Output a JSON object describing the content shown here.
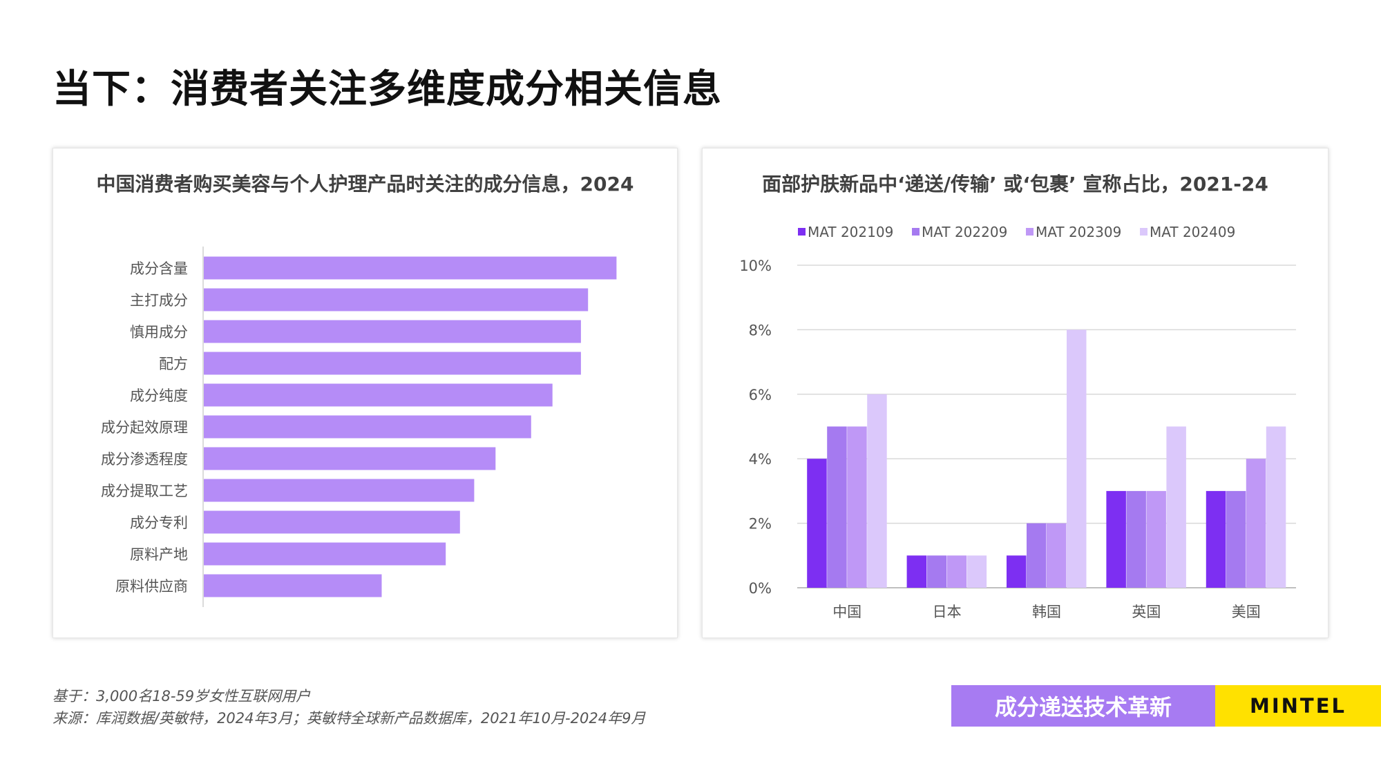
{
  "page": {
    "title": "当下：消费者关注多维度成分相关信息"
  },
  "chart_data": [
    {
      "type": "bar",
      "orientation": "horizontal",
      "title": "中国消费者购买美容与个人护理产品时关注的成分信息，2024",
      "categories": [
        "成分含量",
        "主打成分",
        "慎用成分",
        "配方",
        "成分纯度",
        "成分起效原理",
        "成分渗透程度",
        "成分提取工艺",
        "成分专利",
        "原料产地",
        "原料供应商"
      ],
      "values": [
        58,
        54,
        53,
        53,
        49,
        46,
        41,
        38,
        36,
        34,
        25
      ],
      "xlim": [
        0,
        60
      ],
      "grid": false,
      "color": "#b58cf7"
    },
    {
      "type": "bar",
      "title": "面部护肤新品中‘递送/传输’ 或‘包裹’ 宣称占比，2021-24",
      "categories": [
        "中国",
        "日本",
        "韩国",
        "英国",
        "美国"
      ],
      "series": [
        {
          "name": "MAT 202109",
          "values": [
            4,
            1,
            1,
            3,
            3
          ],
          "color": "#7d2ff2"
        },
        {
          "name": "MAT 202209",
          "values": [
            5,
            1,
            2,
            3,
            3
          ],
          "color": "#a57af0"
        },
        {
          "name": "MAT 202309",
          "values": [
            5,
            1,
            2,
            3,
            4
          ],
          "color": "#bf98f6"
        },
        {
          "name": "MAT 202409",
          "values": [
            6,
            1,
            8,
            5,
            5
          ],
          "color": "#dbc8fb"
        }
      ],
      "yticks": [
        "0%",
        "2%",
        "4%",
        "6%",
        "8%",
        "10%"
      ],
      "ylim": [
        0,
        10
      ],
      "grid": true,
      "legend": "top"
    }
  ],
  "footer": {
    "note1": "基于：3,000名18-59岁女性互联网用户",
    "note2": "来源：库润数据/英敏特，2024年3月；英敏特全球新产品数据库，2021年10月-2024年9月",
    "topic": "成分递送技术革新",
    "brand": "MINTEL",
    "topic_color": "#a77bf2",
    "brand_color": "#ffe100"
  }
}
